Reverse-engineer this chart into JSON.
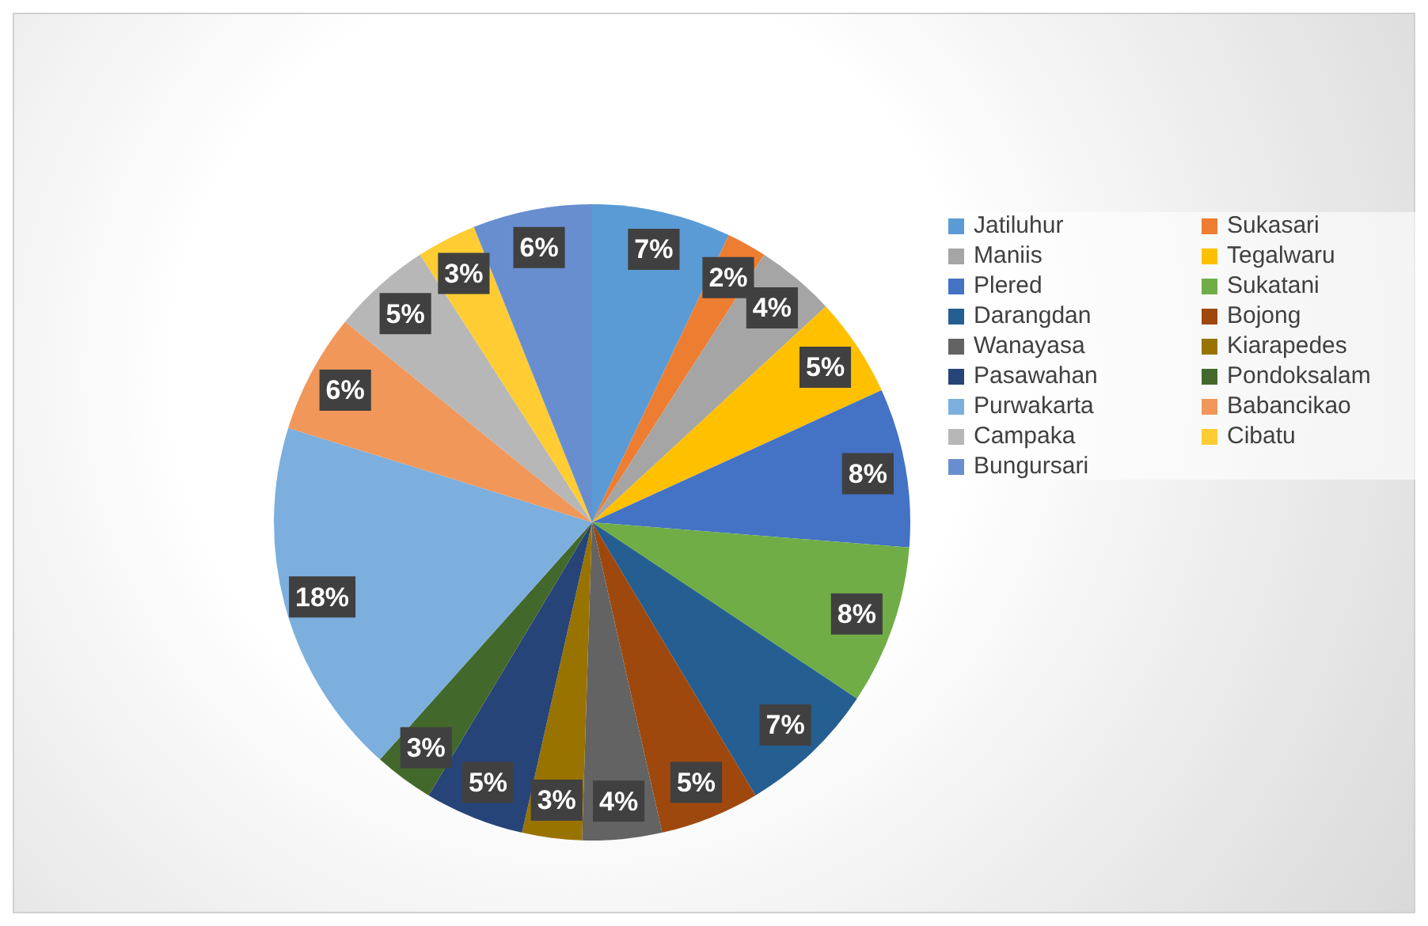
{
  "chart_data": {
    "type": "pie",
    "categories": [
      "Jatiluhur",
      "Sukasari",
      "Maniis",
      "Tegalwaru",
      "Plered",
      "Sukatani",
      "Darangdan",
      "Bojong",
      "Wanayasa",
      "Kiarapedes",
      "Pasawahan",
      "Pondoksalam",
      "Purwakarta",
      "Babancikao",
      "Campaka",
      "Cibatu",
      "Bungursari"
    ],
    "values": [
      7,
      2,
      4,
      5,
      8,
      8,
      7,
      5,
      4,
      3,
      5,
      3,
      18,
      6,
      5,
      3,
      6
    ],
    "value_labels": [
      "7%",
      "2%",
      "4%",
      "5%",
      "8%",
      "8%",
      "7%",
      "5%",
      "4%",
      "3%",
      "5%",
      "3%",
      "18%",
      "6%",
      "5%",
      "3%",
      "6%"
    ],
    "colors": [
      "#5b9bd5",
      "#ed7d31",
      "#a5a5a5",
      "#ffc000",
      "#4472c4",
      "#70ad47",
      "#255e91",
      "#9e480e",
      "#636363",
      "#997300",
      "#264478",
      "#43682b",
      "#7cafdd",
      "#f1975a",
      "#b7b7b7",
      "#ffcd33",
      "#698ed0"
    ],
    "legend": "right"
  }
}
